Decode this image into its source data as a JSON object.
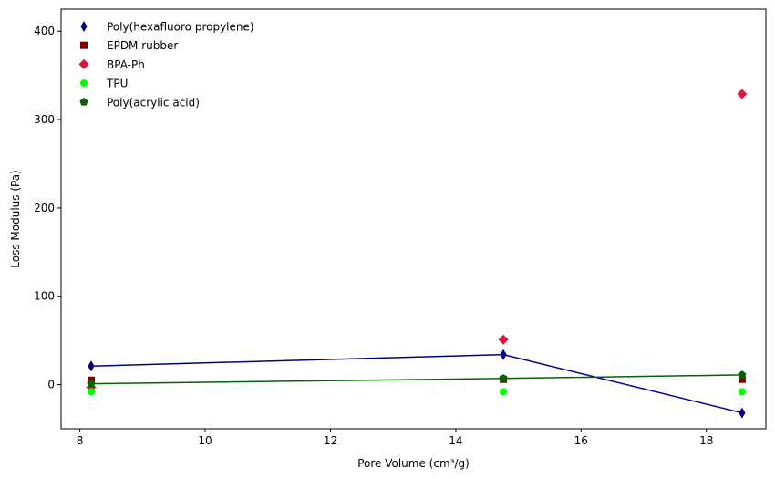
{
  "chart_data": {
    "type": "scatter",
    "title": "",
    "xlabel": "Pore Volume (cm³/g)",
    "ylabel": "Loss Modulus (Pa)",
    "xlim": [
      7.7,
      18.95
    ],
    "ylim": [
      -50,
      425
    ],
    "xticks": [
      8,
      10,
      12,
      14,
      16,
      18
    ],
    "yticks": [
      0,
      100,
      200,
      300,
      400
    ],
    "grid": false,
    "legend_position": "top-left",
    "series": [
      {
        "name": "Poly(hexafluoro propylene)",
        "marker": "thin_diamond",
        "color": "#00008b",
        "x": [
          8.18,
          14.76,
          18.57
        ],
        "y": [
          21,
          34,
          -32
        ],
        "fit_line": {
          "x": [
            8.18,
            14.76,
            18.57
          ],
          "y": [
            21,
            34,
            -32
          ]
        }
      },
      {
        "name": "EPDM rubber",
        "marker": "square",
        "color": "#800000",
        "x": [
          8.18,
          14.76,
          18.57
        ],
        "y": [
          5,
          6,
          6
        ]
      },
      {
        "name": "BPA-Ph",
        "marker": "diamond",
        "color": "#dc143c",
        "x": [
          8.18,
          14.76,
          18.57
        ],
        "y": [
          -3,
          51,
          329
        ]
      },
      {
        "name": "TPU",
        "marker": "circle",
        "color": "#00ff00",
        "x": [
          8.18,
          14.76,
          18.57
        ],
        "y": [
          -8,
          -8,
          -8
        ]
      },
      {
        "name": "Poly(acrylic acid)",
        "marker": "pentagon",
        "color": "#006400",
        "x": [
          8.18,
          14.76,
          18.57
        ],
        "y": [
          1,
          7,
          11
        ],
        "fit_line": {
          "x": [
            8.18,
            14.76,
            18.57
          ],
          "y": [
            1,
            7,
            11
          ]
        }
      }
    ]
  }
}
